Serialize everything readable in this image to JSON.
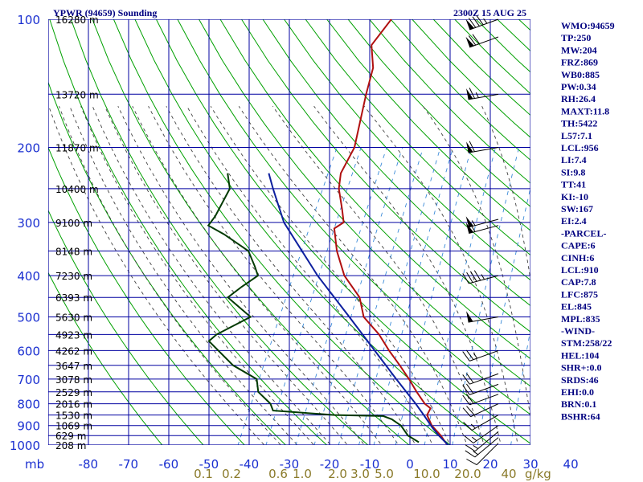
{
  "chart_data": {
    "type": "skew-t sounding",
    "title": "YPWR (94659) Sounding",
    "time": "2300Z 15 AUG 25",
    "pressure_axis": {
      "ticks": [
        100,
        200,
        300,
        400,
        500,
        600,
        700,
        800,
        900,
        1000
      ],
      "unit": "mb",
      "log_scale": true,
      "range": [
        100,
        1000
      ]
    },
    "temperature_axis": {
      "ticks": [
        -80,
        -70,
        -60,
        -50,
        -40,
        -30,
        -20,
        -10,
        0,
        10,
        20,
        30,
        40
      ],
      "unit": "°C",
      "skew_per_decade_px": 280
    },
    "mixing_ratio_labels": [
      "0.1",
      "0.2",
      "0.6",
      "1.0",
      "2.0",
      "3.0",
      "5.0",
      "10.0",
      "20.0",
      "40"
    ],
    "mixing_ratio_unit": "g/kg",
    "height_labels": [
      {
        "p": 100,
        "label": "16280 m"
      },
      {
        "p": 150,
        "label": "13720 m"
      },
      {
        "p": 200,
        "label": "11870 m"
      },
      {
        "p": 250,
        "label": "10400 m"
      },
      {
        "p": 300,
        "label": "9100 m"
      },
      {
        "p": 350,
        "label": "8148 m"
      },
      {
        "p": 400,
        "label": "7230 m"
      },
      {
        "p": 450,
        "label": "6393 m"
      },
      {
        "p": 500,
        "label": "5630 m"
      },
      {
        "p": 550,
        "label": "4923 m"
      },
      {
        "p": 600,
        "label": "4262 m"
      },
      {
        "p": 650,
        "label": "3647 m"
      },
      {
        "p": 700,
        "label": "3078 m"
      },
      {
        "p": 750,
        "label": "2529 m"
      },
      {
        "p": 800,
        "label": "2016 m"
      },
      {
        "p": 850,
        "label": "1530 m"
      },
      {
        "p": 900,
        "label": "1069 m"
      },
      {
        "p": 950,
        "label": "629 m"
      },
      {
        "p": 1000,
        "label": "208 m"
      }
    ],
    "series": [
      {
        "name": "temperature",
        "color": "#b01010",
        "points": [
          [
            100,
            -59.0
          ],
          [
            115,
            -60.5
          ],
          [
            130,
            -57.2
          ],
          [
            150,
            -55.5
          ],
          [
            200,
            -51.5
          ],
          [
            230,
            -51.5
          ],
          [
            250,
            -50.0
          ],
          [
            280,
            -46.5
          ],
          [
            300,
            -44.5
          ],
          [
            310,
            -46.0
          ],
          [
            350,
            -42.5
          ],
          [
            400,
            -37.5
          ],
          [
            450,
            -31.0
          ],
          [
            500,
            -27.5
          ],
          [
            550,
            -21.5
          ],
          [
            600,
            -17.0
          ],
          [
            650,
            -12.5
          ],
          [
            700,
            -8.5
          ],
          [
            750,
            -5.0
          ],
          [
            800,
            -1.5
          ],
          [
            820,
            0.5
          ],
          [
            850,
            0.5
          ],
          [
            900,
            3.0
          ],
          [
            950,
            6.5
          ],
          [
            995,
            9.0
          ]
        ]
      },
      {
        "name": "dewpoint",
        "color": "#003a00",
        "points": [
          [
            230,
            -79.0
          ],
          [
            250,
            -76.5
          ],
          [
            290,
            -76.5
          ],
          [
            305,
            -77.0
          ],
          [
            320,
            -72.0
          ],
          [
            350,
            -64.0
          ],
          [
            380,
            -60.5
          ],
          [
            400,
            -58.5
          ],
          [
            425,
            -61.0
          ],
          [
            450,
            -63.0
          ],
          [
            500,
            -55.0
          ],
          [
            550,
            -61.0
          ],
          [
            570,
            -62.0
          ],
          [
            650,
            -53.0
          ],
          [
            700,
            -45.5
          ],
          [
            750,
            -43.5
          ],
          [
            800,
            -39.0
          ],
          [
            830,
            -37.5
          ],
          [
            850,
            -22.0
          ],
          [
            855,
            -10.0
          ],
          [
            870,
            -7.5
          ],
          [
            900,
            -4.5
          ],
          [
            950,
            -1.5
          ],
          [
            985,
            2.0
          ]
        ]
      },
      {
        "name": "parcel",
        "color": "#0d1f9e",
        "points": [
          [
            1000,
            9.5
          ],
          [
            950,
            6.0
          ],
          [
            910,
            3.4
          ],
          [
            850,
            -0.3
          ],
          [
            800,
            -3.7
          ],
          [
            700,
            -11.6
          ],
          [
            600,
            -20.5
          ],
          [
            500,
            -31.0
          ],
          [
            400,
            -44.0
          ],
          [
            300,
            -59.0
          ],
          [
            250,
            -66.0
          ],
          [
            230,
            -69.0
          ]
        ]
      }
    ],
    "winds": [
      {
        "p": 100,
        "dir": 250,
        "spd": 85
      },
      {
        "p": 110,
        "dir": 250,
        "spd": 70
      },
      {
        "p": 150,
        "dir": 260,
        "spd": 65
      },
      {
        "p": 200,
        "dir": 260,
        "spd": 60
      },
      {
        "p": 295,
        "dir": 255,
        "spd": 55
      },
      {
        "p": 305,
        "dir": 255,
        "spd": 55
      },
      {
        "p": 400,
        "dir": 255,
        "spd": 45
      },
      {
        "p": 500,
        "dir": 260,
        "spd": 50
      },
      {
        "p": 600,
        "dir": 250,
        "spd": 25
      },
      {
        "p": 680,
        "dir": 250,
        "spd": 20
      },
      {
        "p": 720,
        "dir": 250,
        "spd": 20
      },
      {
        "p": 760,
        "dir": 250,
        "spd": 20
      },
      {
        "p": 800,
        "dir": 245,
        "spd": 20
      },
      {
        "p": 850,
        "dir": 240,
        "spd": 15
      },
      {
        "p": 900,
        "dir": 235,
        "spd": 15
      },
      {
        "p": 930,
        "dir": 230,
        "spd": 15
      },
      {
        "p": 960,
        "dir": 230,
        "spd": 15
      },
      {
        "p": 990,
        "dir": 225,
        "spd": 10
      }
    ],
    "grid": true
  },
  "labels": {
    "title": "YPWR (94659) Sounding",
    "time": "2300Z 15 AUG 25",
    "unit_mb": "mb",
    "unit_gkg": "g/kg"
  },
  "indices": [
    "WMO:94659",
    "TP:250",
    "MW:204",
    "FRZ:869",
    "WB0:885",
    "PW:0.34",
    "RH:26.4",
    "MAXT:11.8",
    "TH:5422",
    "L57:7.1",
    "LCL:956",
    "LI:7.4",
    "SI:9.8",
    "TT:41",
    "KI:-10",
    "SW:167",
    "EI:2.4",
    "-PARCEL-",
    "CAPE:6",
    "CINH:6",
    "LCL:910",
    "CAP:7.8",
    "LFC:875",
    "EL:845",
    "MPL:835",
    "-WIND-",
    "STM:258/22",
    "HEL:104",
    "SHR+:0.0",
    "SRDS:46",
    "EHI:0.0",
    "BRN:0.1",
    "BSHR:64"
  ],
  "colors": {
    "grid": "#0000a0",
    "dry_adiabat": "#00a000",
    "moist_adiabat": "#404040",
    "mixing_ratio": "#3a8ad8",
    "temperature": "#b01010",
    "dewpoint": "#003a00",
    "parcel": "#0d1f9e"
  }
}
